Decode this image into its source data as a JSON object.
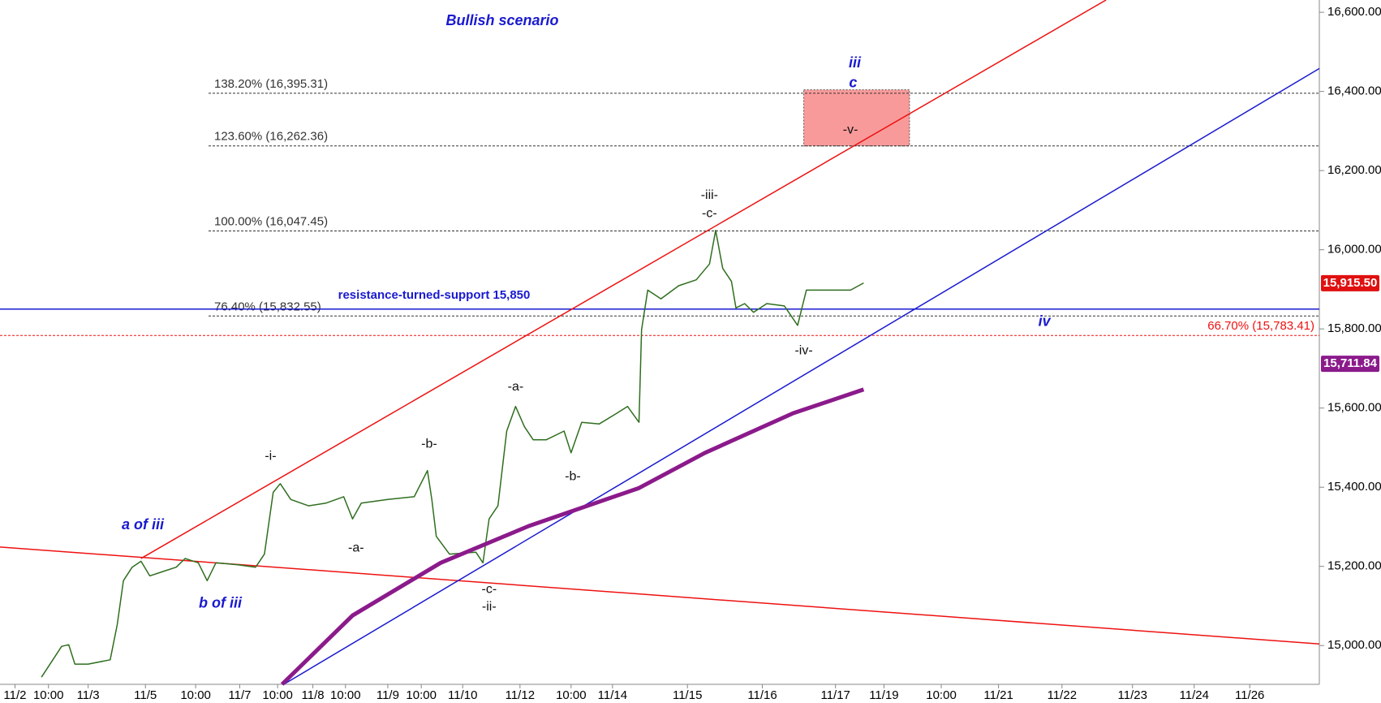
{
  "chart_data": {
    "type": "line",
    "title": "Bullish scenario",
    "xlim": [
      0,
      1497
    ],
    "ylim": [
      14902,
      16631
    ],
    "xticks": [
      {
        "value": 17,
        "label": "11/2"
      },
      {
        "value": 55,
        "label": "10:00"
      },
      {
        "value": 100,
        "label": "11/3"
      },
      {
        "value": 165,
        "label": "11/5"
      },
      {
        "value": 222,
        "label": "10:00"
      },
      {
        "value": 272,
        "label": "11/7"
      },
      {
        "value": 315,
        "label": "10:00"
      },
      {
        "value": 355,
        "label": "11/8"
      },
      {
        "value": 392,
        "label": "10:00"
      },
      {
        "value": 440,
        "label": "11/9"
      },
      {
        "value": 478,
        "label": "10:00"
      },
      {
        "value": 525,
        "label": "11/10"
      },
      {
        "value": 590,
        "label": "11/12"
      },
      {
        "value": 648,
        "label": "10:00"
      },
      {
        "value": 695,
        "label": "11/14"
      },
      {
        "value": 780,
        "label": "11/15"
      },
      {
        "value": 865,
        "label": "11/16"
      },
      {
        "value": 948,
        "label": "11/17"
      },
      {
        "value": 1003,
        "label": "11/19"
      },
      {
        "value": 1068,
        "label": "10:00"
      },
      {
        "value": 1133,
        "label": "11/21"
      },
      {
        "value": 1205,
        "label": "11/22"
      },
      {
        "value": 1285,
        "label": "11/23"
      },
      {
        "value": 1355,
        "label": "11/24"
      },
      {
        "value": 1418,
        "label": "11/26"
      }
    ],
    "yticks": [
      {
        "value": 15000,
        "label": "15,000.00"
      },
      {
        "value": 15200,
        "label": "15,200.00"
      },
      {
        "value": 15400,
        "label": "15,400.00"
      },
      {
        "value": 15600,
        "label": "15,600.00"
      },
      {
        "value": 15800,
        "label": "15,800.00"
      },
      {
        "value": 16000,
        "label": "16,000.00"
      },
      {
        "value": 16200,
        "label": "16,200.00"
      },
      {
        "value": 16400,
        "label": "16,400.00"
      },
      {
        "value": 16600,
        "label": "16,600.00"
      }
    ],
    "series": [
      {
        "color": "#2f6e1f",
        "x": [
          47,
          70,
          78,
          85,
          100,
          125,
          133,
          140,
          150,
          160,
          170,
          185,
          200,
          210,
          225,
          235,
          245,
          270,
          290,
          300,
          310,
          318,
          330,
          350,
          370,
          390,
          400,
          410,
          440,
          470,
          485,
          490,
          495,
          510,
          540,
          548,
          555,
          565,
          575,
          585,
          595,
          605,
          620,
          640,
          648,
          660,
          680,
          700,
          712,
          725,
          728,
          735,
          750,
          770,
          790,
          805,
          812,
          820,
          830,
          835,
          845,
          855,
          870,
          890,
          905,
          915,
          930,
          950,
          965,
          980
        ],
        "values": [
          14920,
          14998,
          15002,
          14953,
          14953,
          14964,
          15053,
          15164,
          15198,
          15213,
          15176,
          15187,
          15198,
          15220,
          15209,
          15164,
          15209,
          15204,
          15198,
          15231,
          15387,
          15409,
          15369,
          15353,
          15360,
          15376,
          15320,
          15360,
          15369,
          15376,
          15442,
          15369,
          15276,
          15231,
          15236,
          15209,
          15320,
          15353,
          15542,
          15604,
          15553,
          15520,
          15520,
          15542,
          15487,
          15564,
          15560,
          15587,
          15604,
          15564,
          15798,
          15898,
          15876,
          15909,
          15924,
          15964,
          16049,
          15953,
          15920,
          15853,
          15864,
          15842,
          15864,
          15858,
          15809,
          15898,
          15898,
          15898,
          15898,
          15916
        ]
      },
      {
        "color": "#8b1a8b",
        "x": [
          320,
          400,
          500,
          600,
          725,
          800,
          900,
          980
        ],
        "values": [
          14902,
          15076,
          15209,
          15302,
          15398,
          15487,
          15587,
          15647
        ]
      }
    ],
    "trendlines": [
      {
        "color": "#ee1111",
        "x": [
          160,
          1255
        ],
        "values": [
          15220,
          16631
        ]
      },
      {
        "color": "#ee1111",
        "x": [
          0,
          1497
        ],
        "values": [
          15249,
          15004
        ]
      },
      {
        "color": "#1a1ad0",
        "x": [
          322,
          1497
        ],
        "values": [
          14902,
          16458
        ]
      }
    ],
    "horizontal_line": {
      "label": "resistance-turned-support 15,850",
      "value": 15850,
      "color": "#1a1ad0"
    },
    "fib_levels": [
      {
        "label": "138.20% (16,395.31)",
        "value": 16395.31,
        "color": "#333333"
      },
      {
        "label": "123.60% (16,262.36)",
        "value": 16262.36,
        "color": "#333333"
      },
      {
        "label": "100.00% (16,047.45)",
        "value": 16047.45,
        "color": "#333333"
      },
      {
        "label": "76.40% (15,832.55)",
        "value": 15832.55,
        "color": "#333333"
      },
      {
        "label": "66.70% (15,783.41)",
        "value": 15783.41,
        "color": "#ee1111"
      }
    ],
    "target_box": {
      "x": [
        912,
        1032
      ],
      "values": [
        16262.36,
        16404
      ],
      "color": "#f99a9a"
    },
    "price_labels": [
      {
        "label": "15,915.50",
        "value": 15915.5,
        "color": "#e01010"
      },
      {
        "label": "15,711.84",
        "value": 15711.84,
        "color": "#8b1a8b"
      }
    ],
    "annotations": [
      "iii",
      "c",
      "-v-",
      "-iii-",
      "-c-",
      "-iv-",
      "iv",
      "-a-",
      "-b-",
      "-b-",
      "-i-",
      "-a-",
      "-c-",
      "-ii-",
      "a of iii",
      "b of iii"
    ]
  }
}
